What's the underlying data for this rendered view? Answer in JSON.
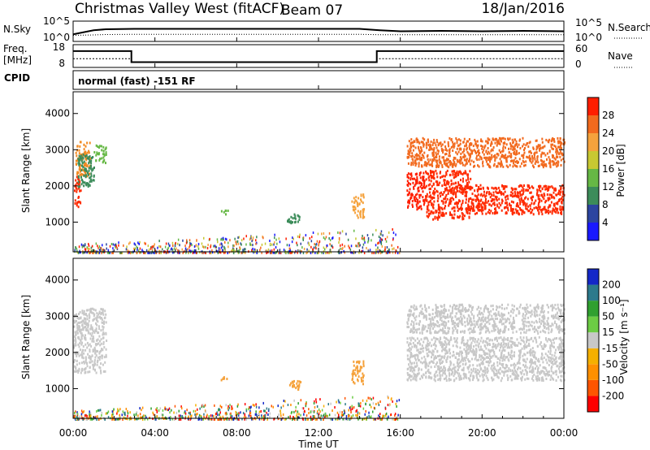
{
  "header": {
    "station": "Christmas Valley West (fitACF)",
    "beam": "Beam 07",
    "date": "18/Jan/2016"
  },
  "chart_data": [
    {
      "type": "line",
      "panel": "noise",
      "left_label": "N.Sky",
      "right_label": "N.Search",
      "yticks_left": [
        "10^5",
        "10^0"
      ],
      "yticks_right": [
        "10^5",
        "10^0"
      ],
      "x_hours": [
        0,
        1,
        1.6,
        3,
        6,
        10,
        14,
        15,
        16,
        18,
        20,
        22,
        24
      ],
      "sky": [
        0.35,
        0.55,
        0.6,
        0.62,
        0.62,
        0.62,
        0.62,
        0.55,
        0.5,
        0.52,
        0.5,
        0.52,
        0.5
      ],
      "search": [
        0.3,
        0.32,
        0.34,
        0.35,
        0.35,
        0.35,
        0.35,
        0.33,
        0.33,
        0.33,
        0.33,
        0.33,
        0.33
      ]
    },
    {
      "type": "line",
      "panel": "frequency",
      "left_label_1": "Freq.",
      "left_label_2": "[MHz]",
      "right_label": "Nave",
      "yticks_left": [
        "18",
        "8"
      ],
      "yticks_right": [
        "60",
        "0"
      ],
      "freq": [
        [
          0,
          15.2
        ],
        [
          2.85,
          15.2
        ],
        [
          2.85,
          10.3
        ],
        [
          14.85,
          10.3
        ],
        [
          14.85,
          15.2
        ],
        [
          24,
          15.2
        ]
      ],
      "nave": [
        [
          0,
          23
        ],
        [
          2.85,
          23
        ],
        [
          2.85,
          15
        ],
        [
          14.85,
          15
        ],
        [
          14.85,
          23
        ],
        [
          24,
          23
        ]
      ]
    },
    {
      "type": "heatmap",
      "panel": "cpid",
      "label": "CPID",
      "text": "normal (fast) -151 RF"
    },
    {
      "type": "heatmap",
      "panel": "power",
      "ylabel": "Slant Range [km]",
      "yticks": [
        "1000",
        "2000",
        "3000",
        "4000"
      ],
      "yrange_km": [
        180,
        4600
      ],
      "colorbar_label": "Power [dB]",
      "colorbar_ticks": [
        "4",
        "8",
        "12",
        "16",
        "20",
        "24",
        "28"
      ],
      "colorbar_colors": [
        "#1a1aff",
        "#2c45a0",
        "#3c8c5a",
        "#66b845",
        "#c8c832",
        "#f5a23c",
        "#f26a1e",
        "#ff1e00"
      ],
      "regions": [
        {
          "t": [
            0,
            0.35
          ],
          "r": [
            1450,
            2300
          ],
          "color": "#ff2a00"
        },
        {
          "t": [
            0.1,
            0.8
          ],
          "r": [
            2300,
            3250
          ],
          "color": "#f28a22"
        },
        {
          "t": [
            0.2,
            1.0
          ],
          "r": [
            2000,
            2900
          ],
          "color": "#3c8c5a"
        },
        {
          "t": [
            1.0,
            1.6
          ],
          "r": [
            2650,
            3150
          ],
          "color": "#66b845"
        },
        {
          "t": [
            7.2,
            7.6
          ],
          "r": [
            1220,
            1350
          ],
          "color": "#66b845"
        },
        {
          "t": [
            10.4,
            11.1
          ],
          "r": [
            1000,
            1250
          ],
          "color": "#3c8c5a"
        },
        {
          "t": [
            13.6,
            14.2
          ],
          "r": [
            1150,
            1800
          ],
          "color": "#f5a23c"
        },
        {
          "t": [
            16.3,
            17.2
          ],
          "r": [
            1350,
            2400
          ],
          "color": "#ff1e00"
        },
        {
          "t": [
            17.2,
            19.4
          ],
          "r": [
            1100,
            2450
          ],
          "color": "#ff2a00"
        },
        {
          "t": [
            19.4,
            24
          ],
          "r": [
            1250,
            2050
          ],
          "color": "#ff2a00"
        },
        {
          "t": [
            16.3,
            24
          ],
          "r": [
            2550,
            3350
          ],
          "color": "#f26a1e"
        }
      ],
      "ground_band": {
        "t": [
          0,
          16
        ],
        "r": [
          180,
          750
        ]
      }
    },
    {
      "type": "heatmap",
      "panel": "velocity",
      "ylabel": "Slant Range [km]",
      "yticks": [
        "1000",
        "2000",
        "3000",
        "4000"
      ],
      "yrange_km": [
        180,
        4600
      ],
      "colorbar_label": "Velocity [m s⁻¹]",
      "colorbar_ticks": [
        "-200",
        "-100",
        "-50",
        "-15",
        "15",
        "50",
        "100",
        "200"
      ],
      "colorbar_colors": [
        "#ff0000",
        "#ff5500",
        "#ff9000",
        "#f5b000",
        "#c8c8c8",
        "#6ccc44",
        "#30a030",
        "#2c7a8c",
        "#1428c8"
      ],
      "regions": [
        {
          "t": [
            0,
            1.6
          ],
          "r": [
            1450,
            3250
          ],
          "color": "#c8c8c8"
        },
        {
          "t": [
            7.2,
            7.6
          ],
          "r": [
            1220,
            1350
          ],
          "color": "#f5a23c"
        },
        {
          "t": [
            10.4,
            11.1
          ],
          "r": [
            1000,
            1250
          ],
          "color": "#f5a23c"
        },
        {
          "t": [
            13.6,
            14.2
          ],
          "r": [
            1150,
            1800
          ],
          "color": "#f5a23c"
        },
        {
          "t": [
            16.3,
            24
          ],
          "r": [
            1250,
            2450
          ],
          "color": "#c8c8c8"
        },
        {
          "t": [
            16.3,
            24
          ],
          "r": [
            2550,
            3350
          ],
          "color": "#c8c8c8"
        }
      ],
      "ground_band": {
        "t": [
          0,
          16
        ],
        "r": [
          180,
          750
        ]
      }
    }
  ],
  "xaxis": {
    "label": "Time UT",
    "ticks": [
      "00:00",
      "04:00",
      "08:00",
      "12:00",
      "16:00",
      "20:00",
      "00:00"
    ]
  }
}
